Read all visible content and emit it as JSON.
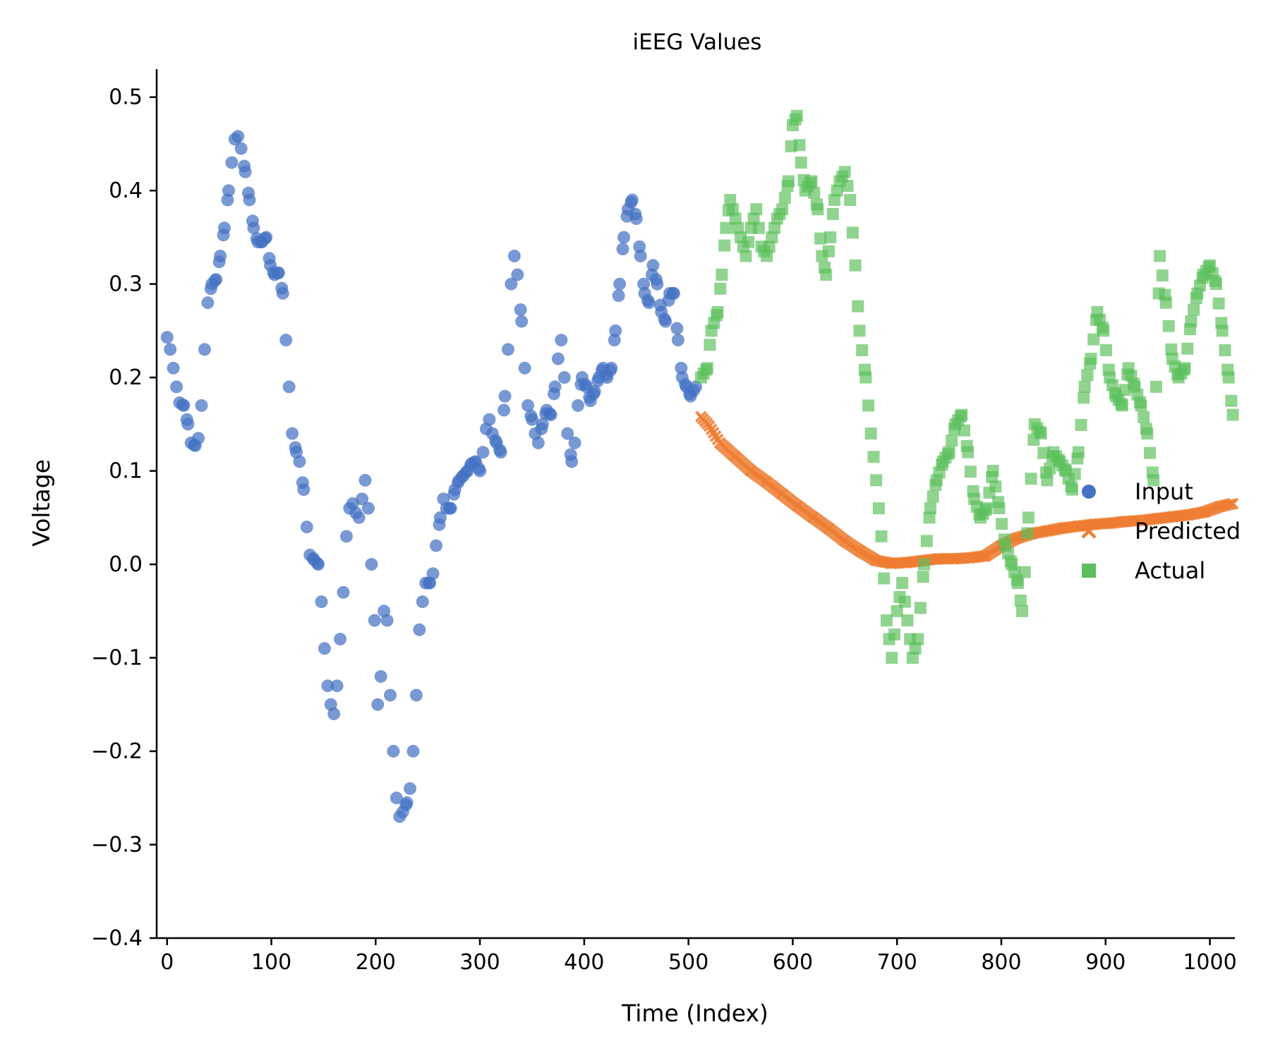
{
  "chart_data": {
    "type": "scatter",
    "title": "iEEG Values",
    "xlabel": "Time (Index)",
    "ylabel": "Voltage",
    "xlim": [
      -10,
      1024
    ],
    "ylim": [
      -0.4,
      0.53
    ],
    "grid": false,
    "legend_position": "right",
    "x_ticks": [
      0,
      100,
      200,
      300,
      400,
      500,
      600,
      700,
      800,
      900,
      1000
    ],
    "x_tick_labels": [
      "0",
      "100",
      "200",
      "300",
      "400",
      "500",
      "600",
      "700",
      "800",
      "900",
      "1000"
    ],
    "y_ticks": [
      0.5,
      0.4,
      0.3,
      0.2,
      0.1,
      0.0,
      -0.1,
      -0.2,
      -0.3,
      -0.4
    ],
    "y_tick_labels": [
      "0.5",
      "0.4",
      "0.3",
      "0.2",
      "0.1",
      "0.0",
      "−0.1",
      "−0.2",
      "−0.3",
      "−0.4"
    ],
    "series": [
      {
        "name": "Input",
        "marker": "circle",
        "color": "#4472C4",
        "points": [
          [
            0,
            0.243
          ],
          [
            3,
            0.23
          ],
          [
            6,
            0.21
          ],
          [
            9,
            0.19
          ],
          [
            12,
            0.173
          ],
          [
            16,
            0.17
          ],
          [
            20,
            0.15
          ],
          [
            23,
            0.13
          ],
          [
            27,
            0.127
          ],
          [
            30,
            0.135
          ],
          [
            33,
            0.17
          ],
          [
            36,
            0.23
          ],
          [
            39,
            0.28
          ],
          [
            43,
            0.3
          ],
          [
            47,
            0.305
          ],
          [
            51,
            0.33
          ],
          [
            55,
            0.36
          ],
          [
            59,
            0.4
          ],
          [
            62,
            0.43
          ],
          [
            65,
            0.455
          ],
          [
            68,
            0.458
          ],
          [
            71,
            0.445
          ],
          [
            75,
            0.42
          ],
          [
            79,
            0.39
          ],
          [
            83,
            0.36
          ],
          [
            87,
            0.345
          ],
          [
            91,
            0.345
          ],
          [
            95,
            0.35
          ],
          [
            99,
            0.32
          ],
          [
            103,
            0.31
          ],
          [
            107,
            0.312
          ],
          [
            111,
            0.29
          ],
          [
            114,
            0.24
          ],
          [
            117,
            0.19
          ],
          [
            120,
            0.14
          ],
          [
            124,
            0.12
          ],
          [
            127,
            0.11
          ],
          [
            131,
            0.08
          ],
          [
            134,
            0.04
          ],
          [
            137,
            0.01
          ],
          [
            141,
            0.005
          ],
          [
            145,
            0.0
          ],
          [
            148,
            -0.04
          ],
          [
            151,
            -0.09
          ],
          [
            154,
            -0.13
          ],
          [
            157,
            -0.15
          ],
          [
            160,
            -0.16
          ],
          [
            163,
            -0.13
          ],
          [
            166,
            -0.08
          ],
          [
            169,
            -0.03
          ],
          [
            172,
            0.03
          ],
          [
            175,
            0.06
          ],
          [
            178,
            0.065
          ],
          [
            181,
            0.055
          ],
          [
            184,
            0.05
          ],
          [
            187,
            0.07
          ],
          [
            190,
            0.09
          ],
          [
            193,
            0.06
          ],
          [
            196,
            0.0
          ],
          [
            199,
            -0.06
          ],
          [
            202,
            -0.15
          ],
          [
            205,
            -0.12
          ],
          [
            208,
            -0.05
          ],
          [
            211,
            -0.06
          ],
          [
            214,
            -0.14
          ],
          [
            217,
            -0.2
          ],
          [
            220,
            -0.25
          ],
          [
            223,
            -0.27
          ],
          [
            226,
            -0.265
          ],
          [
            230,
            -0.255
          ],
          [
            233,
            -0.24
          ],
          [
            236,
            -0.2
          ],
          [
            239,
            -0.14
          ],
          [
            242,
            -0.07
          ],
          [
            245,
            -0.04
          ],
          [
            248,
            -0.02
          ],
          [
            252,
            -0.02
          ],
          [
            255,
            -0.01
          ],
          [
            258,
            0.02
          ],
          [
            262,
            0.05
          ],
          [
            265,
            0.07
          ],
          [
            268,
            0.06
          ],
          [
            272,
            0.06
          ],
          [
            276,
            0.08
          ],
          [
            280,
            0.09
          ],
          [
            284,
            0.095
          ],
          [
            288,
            0.1
          ],
          [
            292,
            0.108
          ],
          [
            296,
            0.11
          ],
          [
            300,
            0.1
          ],
          [
            303,
            0.12
          ],
          [
            306,
            0.145
          ],
          [
            309,
            0.155
          ],
          [
            312,
            0.14
          ],
          [
            316,
            0.13
          ],
          [
            320,
            0.12
          ],
          [
            324,
            0.18
          ],
          [
            327,
            0.23
          ],
          [
            330,
            0.3
          ],
          [
            333,
            0.33
          ],
          [
            336,
            0.31
          ],
          [
            340,
            0.26
          ],
          [
            343,
            0.21
          ],
          [
            346,
            0.17
          ],
          [
            350,
            0.155
          ],
          [
            353,
            0.14
          ],
          [
            356,
            0.13
          ],
          [
            360,
            0.15
          ],
          [
            364,
            0.165
          ],
          [
            368,
            0.16
          ],
          [
            372,
            0.19
          ],
          [
            375,
            0.22
          ],
          [
            378,
            0.24
          ],
          [
            381,
            0.2
          ],
          [
            384,
            0.14
          ],
          [
            388,
            0.11
          ],
          [
            391,
            0.13
          ],
          [
            394,
            0.17
          ],
          [
            398,
            0.2
          ],
          [
            402,
            0.19
          ],
          [
            406,
            0.175
          ],
          [
            410,
            0.185
          ],
          [
            414,
            0.2
          ],
          [
            418,
            0.21
          ],
          [
            422,
            0.2
          ],
          [
            426,
            0.21
          ],
          [
            430,
            0.25
          ],
          [
            434,
            0.3
          ],
          [
            438,
            0.35
          ],
          [
            442,
            0.38
          ],
          [
            446,
            0.39
          ],
          [
            450,
            0.37
          ],
          [
            454,
            0.33
          ],
          [
            458,
            0.29
          ],
          [
            462,
            0.28
          ],
          [
            466,
            0.32
          ],
          [
            470,
            0.3
          ],
          [
            474,
            0.27
          ],
          [
            478,
            0.26
          ],
          [
            482,
            0.29
          ],
          [
            486,
            0.29
          ],
          [
            490,
            0.24
          ],
          [
            494,
            0.2
          ],
          [
            498,
            0.19
          ],
          [
            502,
            0.18
          ],
          [
            507,
            0.19
          ]
        ]
      },
      {
        "name": "Predicted",
        "marker": "x",
        "color": "#ED7D31",
        "points": [
          [
            512,
            0.158
          ],
          [
            520,
            0.148
          ],
          [
            530,
            0.13
          ],
          [
            545,
            0.115
          ],
          [
            560,
            0.1
          ],
          [
            575,
            0.088
          ],
          [
            590,
            0.075
          ],
          [
            605,
            0.062
          ],
          [
            620,
            0.05
          ],
          [
            635,
            0.038
          ],
          [
            650,
            0.025
          ],
          [
            665,
            0.014
          ],
          [
            680,
            0.004
          ],
          [
            695,
            0.001
          ],
          [
            710,
            0.002
          ],
          [
            725,
            0.004
          ],
          [
            740,
            0.006
          ],
          [
            755,
            0.006
          ],
          [
            770,
            0.007
          ],
          [
            785,
            0.009
          ],
          [
            800,
            0.02
          ],
          [
            815,
            0.028
          ],
          [
            830,
            0.033
          ],
          [
            845,
            0.036
          ],
          [
            860,
            0.039
          ],
          [
            875,
            0.041
          ],
          [
            890,
            0.043
          ],
          [
            905,
            0.044
          ],
          [
            920,
            0.046
          ],
          [
            935,
            0.047
          ],
          [
            950,
            0.049
          ],
          [
            965,
            0.051
          ],
          [
            980,
            0.053
          ],
          [
            995,
            0.056
          ],
          [
            1010,
            0.062
          ],
          [
            1022,
            0.065
          ]
        ]
      },
      {
        "name": "Actual",
        "marker": "square",
        "color": "#5CBF5C",
        "points": [
          [
            512,
            0.2
          ],
          [
            518,
            0.21
          ],
          [
            522,
            0.25
          ],
          [
            528,
            0.27
          ],
          [
            532,
            0.31
          ],
          [
            536,
            0.36
          ],
          [
            540,
            0.39
          ],
          [
            545,
            0.37
          ],
          [
            550,
            0.35
          ],
          [
            555,
            0.33
          ],
          [
            560,
            0.36
          ],
          [
            565,
            0.38
          ],
          [
            570,
            0.34
          ],
          [
            575,
            0.33
          ],
          [
            580,
            0.35
          ],
          [
            585,
            0.37
          ],
          [
            590,
            0.38
          ],
          [
            596,
            0.41
          ],
          [
            600,
            0.47
          ],
          [
            604,
            0.48
          ],
          [
            608,
            0.43
          ],
          [
            612,
            0.4
          ],
          [
            618,
            0.41
          ],
          [
            624,
            0.38
          ],
          [
            628,
            0.33
          ],
          [
            632,
            0.31
          ],
          [
            636,
            0.35
          ],
          [
            640,
            0.39
          ],
          [
            645,
            0.41
          ],
          [
            650,
            0.42
          ],
          [
            655,
            0.39
          ],
          [
            660,
            0.32
          ],
          [
            664,
            0.25
          ],
          [
            670,
            0.2
          ],
          [
            675,
            0.14
          ],
          [
            680,
            0.09
          ],
          [
            685,
            0.03
          ],
          [
            690,
            -0.06
          ],
          [
            695,
            -0.1
          ],
          [
            700,
            -0.05
          ],
          [
            705,
            -0.02
          ],
          [
            710,
            -0.06
          ],
          [
            715,
            -0.1
          ],
          [
            720,
            -0.08
          ],
          [
            726,
            0.0
          ],
          [
            732,
            0.06
          ],
          [
            738,
            0.09
          ],
          [
            744,
            0.11
          ],
          [
            750,
            0.12
          ],
          [
            756,
            0.15
          ],
          [
            762,
            0.16
          ],
          [
            768,
            0.12
          ],
          [
            774,
            0.07
          ],
          [
            780,
            0.05
          ],
          [
            786,
            0.06
          ],
          [
            792,
            0.1
          ],
          [
            798,
            0.06
          ],
          [
            804,
            0.02
          ],
          [
            810,
            0.0
          ],
          [
            816,
            -0.02
          ],
          [
            820,
            -0.05
          ],
          [
            826,
            0.05
          ],
          [
            832,
            0.15
          ],
          [
            838,
            0.14
          ],
          [
            844,
            0.09
          ],
          [
            850,
            0.12
          ],
          [
            856,
            0.11
          ],
          [
            862,
            0.1
          ],
          [
            868,
            0.08
          ],
          [
            874,
            0.12
          ],
          [
            880,
            0.19
          ],
          [
            886,
            0.22
          ],
          [
            892,
            0.27
          ],
          [
            898,
            0.25
          ],
          [
            904,
            0.2
          ],
          [
            910,
            0.18
          ],
          [
            916,
            0.17
          ],
          [
            922,
            0.21
          ],
          [
            928,
            0.19
          ],
          [
            934,
            0.17
          ],
          [
            940,
            0.14
          ],
          [
            946,
            0.09
          ],
          [
            952,
            0.33
          ],
          [
            958,
            0.28
          ],
          [
            964,
            0.22
          ],
          [
            970,
            0.2
          ],
          [
            976,
            0.21
          ],
          [
            982,
            0.26
          ],
          [
            988,
            0.29
          ],
          [
            994,
            0.31
          ],
          [
            1000,
            0.32
          ],
          [
            1006,
            0.3
          ],
          [
            1012,
            0.25
          ],
          [
            1018,
            0.2
          ],
          [
            1022,
            0.16
          ]
        ]
      }
    ]
  }
}
